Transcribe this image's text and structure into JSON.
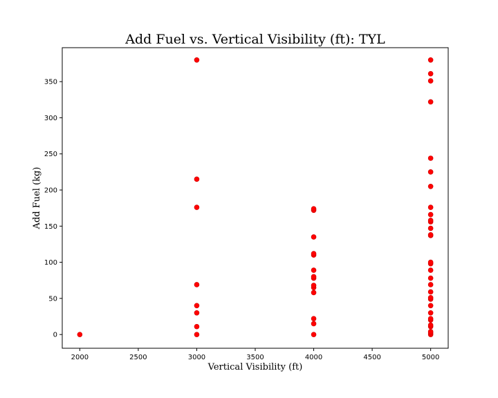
{
  "chart_data": {
    "type": "scatter",
    "title": "Add Fuel vs. Vertical Visibility (ft): TYL",
    "xlabel": "Vertical Visibility (ft)",
    "ylabel": "Add Fuel (kg)",
    "xlim": [
      1850,
      5150
    ],
    "ylim": [
      -19,
      397
    ],
    "xticks": [
      2000,
      2500,
      3000,
      3500,
      4000,
      4500,
      5000
    ],
    "yticks": [
      0,
      50,
      100,
      150,
      200,
      250,
      300,
      350
    ],
    "grid": false,
    "marker_color": "#ff0000",
    "series": [
      {
        "points": [
          [
            2000,
            0
          ],
          [
            3000,
            0
          ],
          [
            3000,
            11
          ],
          [
            3000,
            30
          ],
          [
            3000,
            40
          ],
          [
            3000,
            69
          ],
          [
            3000,
            176
          ],
          [
            3000,
            215
          ],
          [
            3000,
            380
          ],
          [
            4000,
            0
          ],
          [
            4000,
            15
          ],
          [
            4000,
            22
          ],
          [
            4000,
            58
          ],
          [
            4000,
            65
          ],
          [
            4000,
            68
          ],
          [
            4000,
            78
          ],
          [
            4000,
            80
          ],
          [
            4000,
            89
          ],
          [
            4000,
            110
          ],
          [
            4000,
            112
          ],
          [
            4000,
            135
          ],
          [
            4000,
            172
          ],
          [
            4000,
            174
          ],
          [
            5000,
            0
          ],
          [
            5000,
            2
          ],
          [
            5000,
            4
          ],
          [
            5000,
            11
          ],
          [
            5000,
            13
          ],
          [
            5000,
            20
          ],
          [
            5000,
            22
          ],
          [
            5000,
            30
          ],
          [
            5000,
            40
          ],
          [
            5000,
            49
          ],
          [
            5000,
            51
          ],
          [
            5000,
            59
          ],
          [
            5000,
            69
          ],
          [
            5000,
            78
          ],
          [
            5000,
            89
          ],
          [
            5000,
            98
          ],
          [
            5000,
            100
          ],
          [
            5000,
            137
          ],
          [
            5000,
            138
          ],
          [
            5000,
            147
          ],
          [
            5000,
            156
          ],
          [
            5000,
            158
          ],
          [
            5000,
            166
          ],
          [
            5000,
            176
          ],
          [
            5000,
            205
          ],
          [
            5000,
            225
          ],
          [
            5000,
            244
          ],
          [
            5000,
            322
          ],
          [
            5000,
            351
          ],
          [
            5000,
            361
          ],
          [
            5000,
            380
          ]
        ]
      }
    ]
  }
}
